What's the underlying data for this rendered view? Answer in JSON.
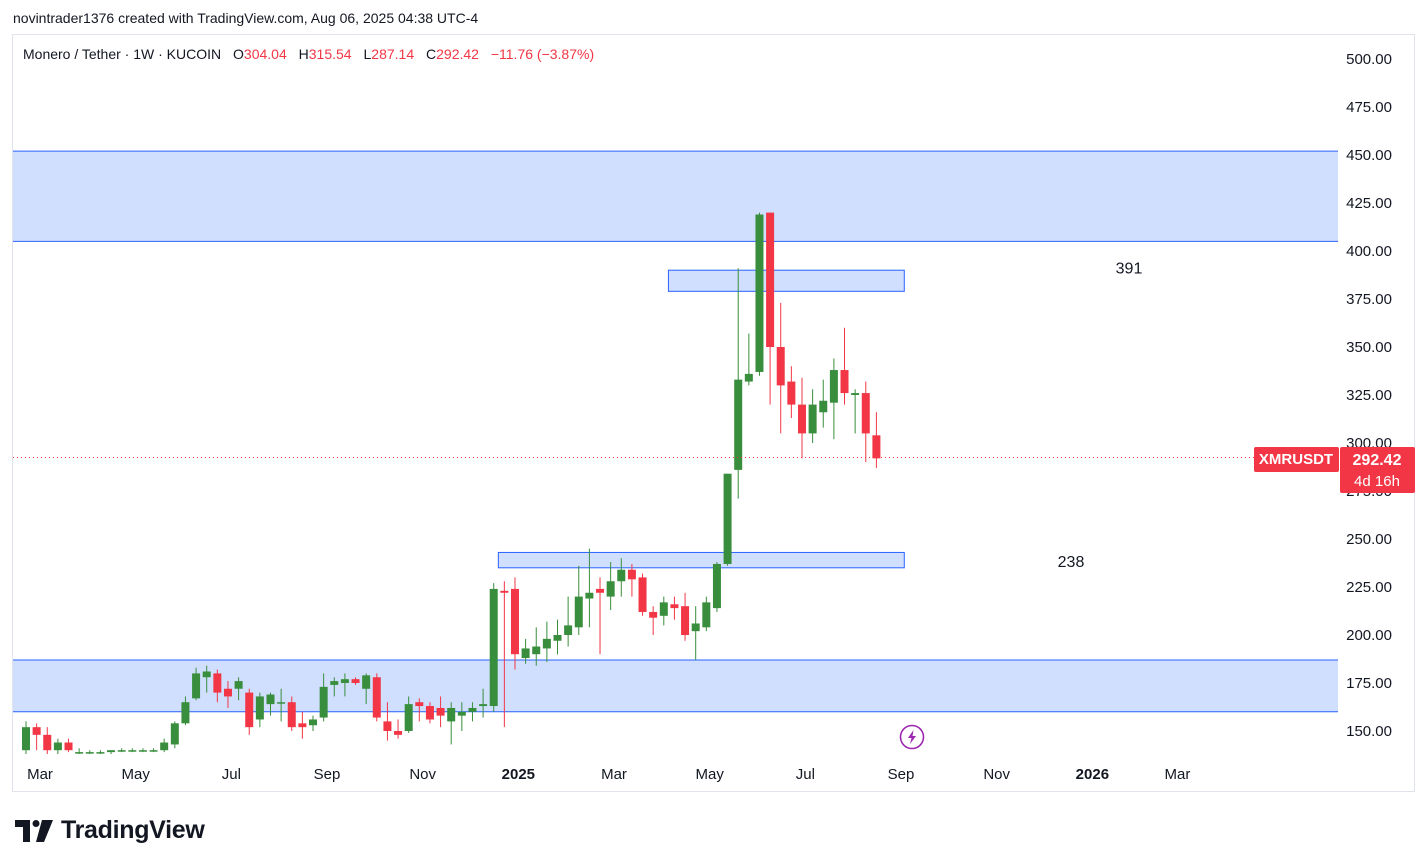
{
  "header": {
    "created_by": "novintrader1376 created with TradingView.com, Aug 06, 2025 04:38 UTC-4"
  },
  "legend": {
    "symbol_line": "Monero / Tether · 1W · KUCOIN",
    "o_label": "O",
    "o_value": "304.04",
    "h_label": "H",
    "h_value": "315.54",
    "l_label": "L",
    "l_value": "287.14",
    "c_label": "C",
    "c_value": "292.42",
    "change": "−11.76 (−3.87%)"
  },
  "price_tag": {
    "ticker": "XMRUSDT",
    "price": "292.42",
    "countdown": "4d 16h"
  },
  "annotations": [
    {
      "text": "391",
      "price": 391
    },
    {
      "text": "238",
      "price": 238
    }
  ],
  "footer": {
    "brand": "TradingView"
  },
  "colors": {
    "up": "#388e3c",
    "down": "#f23645",
    "zone_fill": "#d1dfff",
    "zone_border": "#2962ff",
    "text": "#131722",
    "muted": "#6a6d78"
  },
  "icons": {
    "logo": "tradingview-logo-icon",
    "flash": "lightning-icon"
  },
  "chart_data": {
    "type": "candlestick",
    "symbol": "XMRUSDT",
    "interval": "1W",
    "ylim": [
      138,
      510
    ],
    "y_ticks": [
      150,
      175,
      200,
      225,
      250,
      275,
      300,
      325,
      350,
      375,
      400,
      425,
      450,
      475,
      500
    ],
    "y_tick_labels": [
      "150.00",
      "175.00",
      "200.00",
      "225.00",
      "250.00",
      "275.00",
      "300.00",
      "325.00",
      "350.00",
      "375.00",
      "400.00",
      "425.00",
      "450.00",
      "475.00",
      "500.00"
    ],
    "x_ticks": [
      {
        "label": "Mar",
        "week": 0
      },
      {
        "label": "May",
        "week": 9
      },
      {
        "label": "Jul",
        "week": 18
      },
      {
        "label": "Sep",
        "week": 27
      },
      {
        "label": "Nov",
        "week": 36
      },
      {
        "label": "2025",
        "week": 45
      },
      {
        "label": "Mar",
        "week": 54
      },
      {
        "label": "May",
        "week": 63
      },
      {
        "label": "Jul",
        "week": 72
      },
      {
        "label": "Sep",
        "week": 81
      },
      {
        "label": "Nov",
        "week": 90
      },
      {
        "label": "2026",
        "week": 99
      },
      {
        "label": "Mar",
        "week": 107
      }
    ],
    "zones": [
      {
        "from_week": 0,
        "to_week": "end",
        "low": 405,
        "high": 452
      },
      {
        "from_week": 61,
        "to_week": 83,
        "low": 379,
        "high": 390
      },
      {
        "from_week": 45,
        "to_week": 83,
        "low": 235,
        "high": 243
      },
      {
        "from_week": 0,
        "to_week": "end",
        "low": 160,
        "high": 187
      }
    ],
    "last_price": 292.42,
    "candles": [
      {
        "o": 140,
        "h": 155,
        "l": 138,
        "c": 152
      },
      {
        "o": 152,
        "h": 154,
        "l": 140,
        "c": 148
      },
      {
        "o": 148,
        "h": 152,
        "l": 138,
        "c": 140
      },
      {
        "o": 140,
        "h": 146,
        "l": 138,
        "c": 144
      },
      {
        "o": 144,
        "h": 146,
        "l": 139,
        "c": 140
      },
      {
        "o": 139,
        "h": 141,
        "l": 138,
        "c": 139
      },
      {
        "o": 139,
        "h": 140,
        "l": 138,
        "c": 139
      },
      {
        "o": 139,
        "h": 140,
        "l": 138,
        "c": 139
      },
      {
        "o": 139,
        "h": 140,
        "l": 138,
        "c": 140
      },
      {
        "o": 140,
        "h": 141,
        "l": 139,
        "c": 140
      },
      {
        "o": 140,
        "h": 141,
        "l": 139,
        "c": 140
      },
      {
        "o": 140,
        "h": 141,
        "l": 139,
        "c": 140
      },
      {
        "o": 140,
        "h": 141,
        "l": 139,
        "c": 140
      },
      {
        "o": 140,
        "h": 146,
        "l": 139,
        "c": 144
      },
      {
        "o": 143,
        "h": 155,
        "l": 141,
        "c": 154
      },
      {
        "o": 154,
        "h": 168,
        "l": 153,
        "c": 165
      },
      {
        "o": 167,
        "h": 183,
        "l": 166,
        "c": 180
      },
      {
        "o": 178,
        "h": 184,
        "l": 170,
        "c": 181
      },
      {
        "o": 180,
        "h": 182,
        "l": 165,
        "c": 170
      },
      {
        "o": 172,
        "h": 176,
        "l": 162,
        "c": 168
      },
      {
        "o": 172,
        "h": 178,
        "l": 166,
        "c": 176
      },
      {
        "o": 170,
        "h": 172,
        "l": 148,
        "c": 152
      },
      {
        "o": 156,
        "h": 170,
        "l": 152,
        "c": 168
      },
      {
        "o": 164,
        "h": 170,
        "l": 158,
        "c": 169
      },
      {
        "o": 165,
        "h": 172,
        "l": 155,
        "c": 165
      },
      {
        "o": 165,
        "h": 168,
        "l": 150,
        "c": 152
      },
      {
        "o": 154,
        "h": 160,
        "l": 146,
        "c": 152
      },
      {
        "o": 153,
        "h": 158,
        "l": 150,
        "c": 156
      },
      {
        "o": 157,
        "h": 180,
        "l": 155,
        "c": 173
      },
      {
        "o": 174,
        "h": 178,
        "l": 168,
        "c": 176
      },
      {
        "o": 175,
        "h": 180,
        "l": 168,
        "c": 177
      },
      {
        "o": 177,
        "h": 178,
        "l": 174,
        "c": 175
      },
      {
        "o": 172,
        "h": 180,
        "l": 164,
        "c": 179
      },
      {
        "o": 178,
        "h": 180,
        "l": 155,
        "c": 157
      },
      {
        "o": 155,
        "h": 165,
        "l": 145,
        "c": 150
      },
      {
        "o": 150,
        "h": 156,
        "l": 146,
        "c": 148
      },
      {
        "o": 150,
        "h": 168,
        "l": 149,
        "c": 164
      },
      {
        "o": 165,
        "h": 167,
        "l": 155,
        "c": 163
      },
      {
        "o": 163,
        "h": 165,
        "l": 154,
        "c": 156
      },
      {
        "o": 162,
        "h": 168,
        "l": 152,
        "c": 158
      },
      {
        "o": 155,
        "h": 165,
        "l": 143,
        "c": 162
      },
      {
        "o": 158,
        "h": 165,
        "l": 150,
        "c": 160
      },
      {
        "o": 160,
        "h": 165,
        "l": 155,
        "c": 162
      },
      {
        "o": 163,
        "h": 172,
        "l": 157,
        "c": 164
      },
      {
        "o": 163,
        "h": 227,
        "l": 160,
        "c": 224
      },
      {
        "o": 223,
        "h": 228,
        "l": 152,
        "c": 222
      },
      {
        "o": 224,
        "h": 230,
        "l": 182,
        "c": 190
      },
      {
        "o": 188,
        "h": 198,
        "l": 185,
        "c": 193
      },
      {
        "o": 190,
        "h": 204,
        "l": 184,
        "c": 194
      },
      {
        "o": 193,
        "h": 207,
        "l": 186,
        "c": 198
      },
      {
        "o": 197,
        "h": 208,
        "l": 190,
        "c": 200
      },
      {
        "o": 200,
        "h": 220,
        "l": 194,
        "c": 205
      },
      {
        "o": 204,
        "h": 236,
        "l": 200,
        "c": 220
      },
      {
        "o": 219,
        "h": 245,
        "l": 204,
        "c": 222
      },
      {
        "o": 224,
        "h": 230,
        "l": 190,
        "c": 222
      },
      {
        "o": 220,
        "h": 238,
        "l": 213,
        "c": 228
      },
      {
        "o": 228,
        "h": 240,
        "l": 220,
        "c": 234
      },
      {
        "o": 234,
        "h": 237,
        "l": 220,
        "c": 229
      },
      {
        "o": 230,
        "h": 232,
        "l": 210,
        "c": 212
      },
      {
        "o": 212,
        "h": 215,
        "l": 200,
        "c": 209
      },
      {
        "o": 210,
        "h": 220,
        "l": 205,
        "c": 217
      },
      {
        "o": 216,
        "h": 220,
        "l": 208,
        "c": 214
      },
      {
        "o": 215,
        "h": 222,
        "l": 197,
        "c": 200
      },
      {
        "o": 202,
        "h": 215,
        "l": 187,
        "c": 206
      },
      {
        "o": 204,
        "h": 220,
        "l": 202,
        "c": 217
      },
      {
        "o": 214,
        "h": 238,
        "l": 212,
        "c": 237
      },
      {
        "o": 237,
        "h": 284,
        "l": 236,
        "c": 284
      },
      {
        "o": 286,
        "h": 391,
        "l": 271,
        "c": 333
      },
      {
        "o": 332,
        "h": 357,
        "l": 330,
        "c": 336
      },
      {
        "o": 337,
        "h": 420,
        "l": 335,
        "c": 419
      },
      {
        "o": 420,
        "h": 420,
        "l": 320,
        "c": 350
      },
      {
        "o": 350,
        "h": 373,
        "l": 305,
        "c": 330
      },
      {
        "o": 332,
        "h": 340,
        "l": 313,
        "c": 320
      },
      {
        "o": 320,
        "h": 334,
        "l": 292,
        "c": 305
      },
      {
        "o": 305,
        "h": 328,
        "l": 300,
        "c": 320
      },
      {
        "o": 316,
        "h": 333,
        "l": 308,
        "c": 322
      },
      {
        "o": 321,
        "h": 344,
        "l": 302,
        "c": 338
      },
      {
        "o": 338,
        "h": 360,
        "l": 320,
        "c": 326
      },
      {
        "o": 325,
        "h": 328,
        "l": 305,
        "c": 326
      },
      {
        "o": 326,
        "h": 332,
        "l": 290,
        "c": 305
      },
      {
        "o": 304,
        "h": 316,
        "l": 287,
        "c": 292
      }
    ]
  }
}
